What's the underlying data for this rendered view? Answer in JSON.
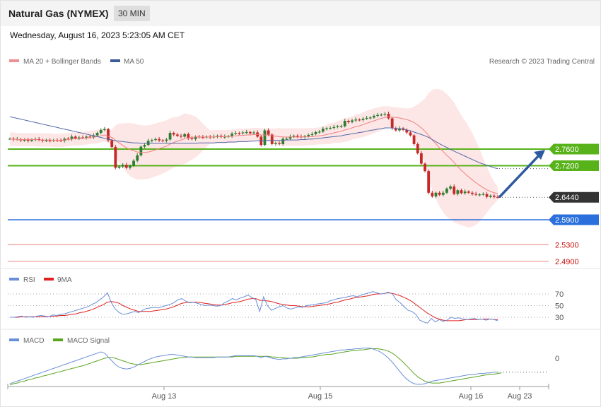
{
  "header": {
    "title": "Natural Gas (NYMEX)",
    "timeframe": "30 MIN"
  },
  "datetime": "Wednesday, August 16, 2023 5:23:05 AM CET",
  "credit": "Research © 2023 Trading Central",
  "colors": {
    "up": "#2e7d32",
    "down": "#c62828",
    "bands": "#fde0e0",
    "ma20": "#f08080",
    "ma50": "#5068a8",
    "green_level": "#58b21a",
    "blue_level": "#2a6fdb",
    "red_level": "#f08f8f",
    "arrow": "#2f5aa0",
    "rsi": "#6a8fd8",
    "rsi_ma": "#e02020",
    "macd": "#6a8fd8",
    "macd_signal": "#5aa51e",
    "current": "#333333"
  },
  "chart_data": [
    {
      "type": "candlestick",
      "legend": [
        {
          "label": "MA 20 + Bollinger Bands",
          "color": "#f08f8f"
        },
        {
          "label": "MA 50",
          "color": "#3a5a98"
        }
      ],
      "levels": [
        {
          "value": 2.76,
          "label": "2.7600",
          "kind": "resistance"
        },
        {
          "value": 2.72,
          "label": "2.7200",
          "kind": "resistance"
        },
        {
          "value": 2.644,
          "label": "2.6440",
          "kind": "current"
        },
        {
          "value": 2.59,
          "label": "2.5900",
          "kind": "pivot"
        },
        {
          "value": 2.53,
          "label": "2.5300",
          "kind": "support"
        },
        {
          "value": 2.49,
          "label": "2.4900",
          "kind": "support"
        }
      ],
      "x_ticks": [
        "Aug 13",
        "Aug 15",
        "Aug 16",
        "Aug 23"
      ],
      "close": [
        2.785,
        2.783,
        2.784,
        2.781,
        2.782,
        2.78,
        2.783,
        2.784,
        2.782,
        2.78,
        2.781,
        2.78,
        2.782,
        2.781,
        2.78,
        2.785,
        2.784,
        2.79,
        2.786,
        2.788,
        2.787,
        2.79,
        2.788,
        2.793,
        2.799,
        2.806,
        2.808,
        2.781,
        2.765,
        2.715,
        2.718,
        2.722,
        2.715,
        2.72,
        2.732,
        2.745,
        2.766,
        2.77,
        2.78,
        2.782,
        2.784,
        2.781,
        2.78,
        2.783,
        2.799,
        2.795,
        2.792,
        2.79,
        2.796,
        2.786,
        2.784,
        2.79,
        2.789,
        2.788,
        2.79,
        2.788,
        2.79,
        2.792,
        2.789,
        2.79,
        2.791,
        2.797,
        2.799,
        2.798,
        2.8,
        2.801,
        2.798,
        2.8,
        2.79,
        2.77,
        2.805,
        2.795,
        2.772,
        2.774,
        2.772,
        2.785,
        2.785,
        2.79,
        2.792,
        2.79,
        2.789,
        2.791,
        2.794,
        2.796,
        2.801,
        2.802,
        2.809,
        2.81,
        2.811,
        2.813,
        2.815,
        2.815,
        2.828,
        2.825,
        2.829,
        2.831,
        2.83,
        2.833,
        2.835,
        2.836,
        2.84,
        2.842,
        2.843,
        2.845,
        2.834,
        2.81,
        2.805,
        2.81,
        2.806,
        2.8,
        2.793,
        2.772,
        2.75,
        2.725,
        2.707,
        2.655,
        2.646,
        2.655,
        2.65,
        2.655,
        2.665,
        2.67,
        2.652,
        2.661,
        2.654,
        2.658,
        2.655,
        2.652,
        2.65,
        2.651,
        2.652,
        2.645,
        2.648,
        2.645,
        2.644
      ],
      "ma20": [
        2.784,
        2.784,
        2.783,
        2.783,
        2.783,
        2.783,
        2.783,
        2.783,
        2.782,
        2.782,
        2.782,
        2.782,
        2.781,
        2.781,
        2.781,
        2.782,
        2.783,
        2.784,
        2.785,
        2.785,
        2.786,
        2.787,
        2.788,
        2.789,
        2.79,
        2.792,
        2.794,
        2.791,
        2.788,
        2.781,
        2.775,
        2.769,
        2.763,
        2.759,
        2.756,
        2.753,
        2.752,
        2.752,
        2.753,
        2.755,
        2.758,
        2.761,
        2.764,
        2.767,
        2.772,
        2.776,
        2.779,
        2.782,
        2.785,
        2.787,
        2.788,
        2.789,
        2.789,
        2.789,
        2.789,
        2.789,
        2.789,
        2.79,
        2.79,
        2.79,
        2.79,
        2.791,
        2.792,
        2.793,
        2.793,
        2.794,
        2.794,
        2.795,
        2.795,
        2.794,
        2.794,
        2.794,
        2.792,
        2.791,
        2.79,
        2.789,
        2.789,
        2.789,
        2.789,
        2.789,
        2.789,
        2.789,
        2.79,
        2.79,
        2.791,
        2.792,
        2.793,
        2.795,
        2.797,
        2.799,
        2.801,
        2.803,
        2.806,
        2.808,
        2.811,
        2.814,
        2.816,
        2.819,
        2.822,
        2.825,
        2.828,
        2.831,
        2.834,
        2.836,
        2.838,
        2.837,
        2.836,
        2.835,
        2.833,
        2.831,
        2.828,
        2.824,
        2.818,
        2.811,
        2.803,
        2.793,
        2.782,
        2.773,
        2.763,
        2.754,
        2.745,
        2.737,
        2.728,
        2.718,
        2.709,
        2.701,
        2.693,
        2.686,
        2.679,
        2.673,
        2.667,
        2.662,
        2.658,
        2.655,
        2.653
      ],
      "ma50": [
        2.838,
        2.836,
        2.834,
        2.832,
        2.83,
        2.828,
        2.826,
        2.824,
        2.822,
        2.82,
        2.818,
        2.816,
        2.814,
        2.812,
        2.81,
        2.808,
        2.806,
        2.804,
        2.802,
        2.8,
        2.798,
        2.796,
        2.794,
        2.792,
        2.79,
        2.788,
        2.786,
        2.784,
        2.782,
        2.78,
        2.779,
        2.778,
        2.777,
        2.776,
        2.775,
        2.775,
        2.774,
        2.774,
        2.774,
        2.774,
        2.774,
        2.774,
        2.774,
        2.774,
        2.774,
        2.774,
        2.774,
        2.774,
        2.774,
        2.774,
        2.774,
        2.774,
        2.775,
        2.775,
        2.775,
        2.775,
        2.775,
        2.776,
        2.776,
        2.776,
        2.777,
        2.777,
        2.777,
        2.778,
        2.778,
        2.778,
        2.779,
        2.779,
        2.78,
        2.78,
        2.78,
        2.781,
        2.781,
        2.781,
        2.781,
        2.781,
        2.782,
        2.782,
        2.782,
        2.782,
        2.783,
        2.783,
        2.784,
        2.784,
        2.785,
        2.786,
        2.787,
        2.788,
        2.789,
        2.79,
        2.791,
        2.792,
        2.794,
        2.795,
        2.797,
        2.798,
        2.8,
        2.801,
        2.803,
        2.805,
        2.806,
        2.808,
        2.809,
        2.811,
        2.811,
        2.811,
        2.81,
        2.809,
        2.808,
        2.806,
        2.804,
        2.801,
        2.798,
        2.795,
        2.792,
        2.788,
        2.783,
        2.778,
        2.773,
        2.768,
        2.764,
        2.759,
        2.755,
        2.751,
        2.747,
        2.743,
        2.739,
        2.735,
        2.731,
        2.727,
        2.724,
        2.721,
        2.718,
        2.715,
        2.713
      ]
    },
    {
      "type": "line",
      "legend": [
        {
          "label": "RSI",
          "color": "#6a8fd8"
        },
        {
          "label": "9MA",
          "color": "#e02020"
        }
      ],
      "y_ticks": [
        70,
        50,
        30
      ],
      "rsi": [
        30,
        30,
        31,
        32,
        30,
        31,
        30,
        32,
        33,
        32,
        31,
        34,
        33,
        35,
        36,
        38,
        40,
        42,
        44,
        46,
        48,
        52,
        55,
        60,
        65,
        72,
        55,
        44,
        38,
        35,
        36,
        38,
        40,
        38,
        42,
        45,
        46,
        47,
        46,
        48,
        50,
        52,
        55,
        60,
        62,
        58,
        55,
        56,
        54,
        52,
        50,
        51,
        50,
        49,
        50,
        55,
        58,
        62,
        60,
        63,
        65,
        68,
        64,
        60,
        40,
        65,
        50,
        42,
        45,
        48,
        50,
        46,
        44,
        46,
        48,
        47,
        50,
        51,
        52,
        53,
        54,
        55,
        58,
        60,
        62,
        63,
        64,
        66,
        67,
        65,
        68,
        70,
        72,
        74,
        72,
        70,
        71,
        73,
        70,
        60,
        55,
        48,
        42,
        40,
        35,
        25,
        22,
        20,
        28,
        22,
        26,
        23,
        25,
        30,
        28,
        29,
        27,
        26,
        27,
        28,
        26,
        27,
        25,
        27,
        26,
        24
      ],
      "ma9": [
        30,
        30,
        30,
        31,
        31,
        31,
        31,
        31,
        31,
        31,
        31,
        32,
        32,
        33,
        33,
        34,
        35,
        36,
        38,
        39,
        41,
        43,
        46,
        49,
        52,
        56,
        57,
        56,
        54,
        50,
        47,
        44,
        42,
        40,
        40,
        40,
        40,
        41,
        42,
        43,
        44,
        46,
        48,
        51,
        54,
        55,
        56,
        56,
        56,
        55,
        54,
        53,
        52,
        51,
        51,
        52,
        53,
        55,
        56,
        57,
        59,
        61,
        62,
        62,
        59,
        59,
        58,
        57,
        55,
        53,
        52,
        51,
        50,
        50,
        49,
        48,
        48,
        48,
        49,
        50,
        51,
        52,
        53,
        55,
        56,
        58,
        60,
        61,
        63,
        64,
        65,
        66,
        67,
        69,
        70,
        70,
        71,
        72,
        71,
        69,
        67,
        64,
        61,
        57,
        52,
        47,
        42,
        37,
        33,
        29,
        27,
        25,
        24,
        24,
        24,
        24,
        25,
        26,
        26,
        26,
        26,
        27,
        27,
        27,
        26,
        26
      ],
      "ylim": [
        10,
        90
      ]
    },
    {
      "type": "line",
      "legend": [
        {
          "label": "MACD",
          "color": "#6a8fd8"
        },
        {
          "label": "MACD Signal",
          "color": "#5aa51e"
        }
      ],
      "y_ticks": [
        0
      ],
      "macd": [
        -0.04,
        -0.038,
        -0.036,
        -0.034,
        -0.032,
        -0.03,
        -0.028,
        -0.026,
        -0.024,
        -0.022,
        -0.02,
        -0.018,
        -0.016,
        -0.014,
        -0.012,
        -0.01,
        -0.008,
        -0.006,
        -0.004,
        -0.002,
        0.0,
        0.002,
        0.004,
        0.006,
        0.008,
        0.01,
        0.008,
        0.002,
        -0.004,
        -0.01,
        -0.014,
        -0.016,
        -0.017,
        -0.016,
        -0.014,
        -0.011,
        -0.008,
        -0.005,
        -0.002,
        0.0,
        0.002,
        0.003,
        0.004,
        0.005,
        0.006,
        0.006,
        0.005,
        0.004,
        0.003,
        0.002,
        0.002,
        0.001,
        0.001,
        0.001,
        0.001,
        0.001,
        0.001,
        0.002,
        0.002,
        0.002,
        0.002,
        0.003,
        0.004,
        0.004,
        0.004,
        0.004,
        0.004,
        0.004,
        0.003,
        0.001,
        0.003,
        0.002,
        0.0,
        -0.001,
        -0.002,
        -0.001,
        -0.001,
        0.0,
        0.001,
        0.001,
        0.002,
        0.003,
        0.004,
        0.005,
        0.006,
        0.007,
        0.008,
        0.009,
        0.01,
        0.011,
        0.012,
        0.013,
        0.013,
        0.014,
        0.014,
        0.015,
        0.015,
        0.016,
        0.016,
        0.016,
        0.014,
        0.012,
        0.009,
        0.005,
        0.0,
        -0.006,
        -0.013,
        -0.02,
        -0.027,
        -0.033,
        -0.037,
        -0.04,
        -0.041,
        -0.041,
        -0.04,
        -0.038,
        -0.036,
        -0.035,
        -0.034,
        -0.033,
        -0.032,
        -0.031,
        -0.03,
        -0.029,
        -0.028,
        -0.027,
        -0.026,
        -0.026,
        -0.025,
        -0.024,
        -0.024,
        -0.023,
        -0.023,
        -0.022,
        -0.022
      ],
      "signal": [
        -0.042,
        -0.04,
        -0.039,
        -0.037,
        -0.036,
        -0.034,
        -0.033,
        -0.031,
        -0.03,
        -0.028,
        -0.027,
        -0.025,
        -0.024,
        -0.022,
        -0.021,
        -0.019,
        -0.018,
        -0.016,
        -0.015,
        -0.013,
        -0.012,
        -0.01,
        -0.008,
        -0.006,
        -0.004,
        -0.002,
        0.0,
        0.001,
        0.001,
        0.0,
        -0.002,
        -0.004,
        -0.006,
        -0.008,
        -0.009,
        -0.01,
        -0.01,
        -0.009,
        -0.008,
        -0.007,
        -0.006,
        -0.005,
        -0.004,
        -0.003,
        -0.002,
        -0.001,
        0.0,
        0.001,
        0.001,
        0.002,
        0.002,
        0.002,
        0.002,
        0.002,
        0.002,
        0.002,
        0.002,
        0.002,
        0.002,
        0.002,
        0.002,
        0.002,
        0.003,
        0.003,
        0.003,
        0.003,
        0.003,
        0.003,
        0.003,
        0.003,
        0.003,
        0.003,
        0.002,
        0.002,
        0.001,
        0.001,
        0.0,
        0.0,
        0.0,
        0.0,
        0.001,
        0.001,
        0.002,
        0.002,
        0.003,
        0.004,
        0.005,
        0.006,
        0.006,
        0.007,
        0.008,
        0.009,
        0.01,
        0.011,
        0.012,
        0.012,
        0.013,
        0.013,
        0.014,
        0.015,
        0.015,
        0.015,
        0.014,
        0.013,
        0.011,
        0.008,
        0.004,
        -0.001,
        -0.006,
        -0.012,
        -0.018,
        -0.024,
        -0.029,
        -0.033,
        -0.036,
        -0.038,
        -0.039,
        -0.039,
        -0.039,
        -0.038,
        -0.037,
        -0.036,
        -0.035,
        -0.034,
        -0.033,
        -0.032,
        -0.031,
        -0.03,
        -0.029,
        -0.028,
        -0.027,
        -0.026,
        -0.025,
        -0.025,
        -0.024,
        -0.023
      ]
    }
  ]
}
